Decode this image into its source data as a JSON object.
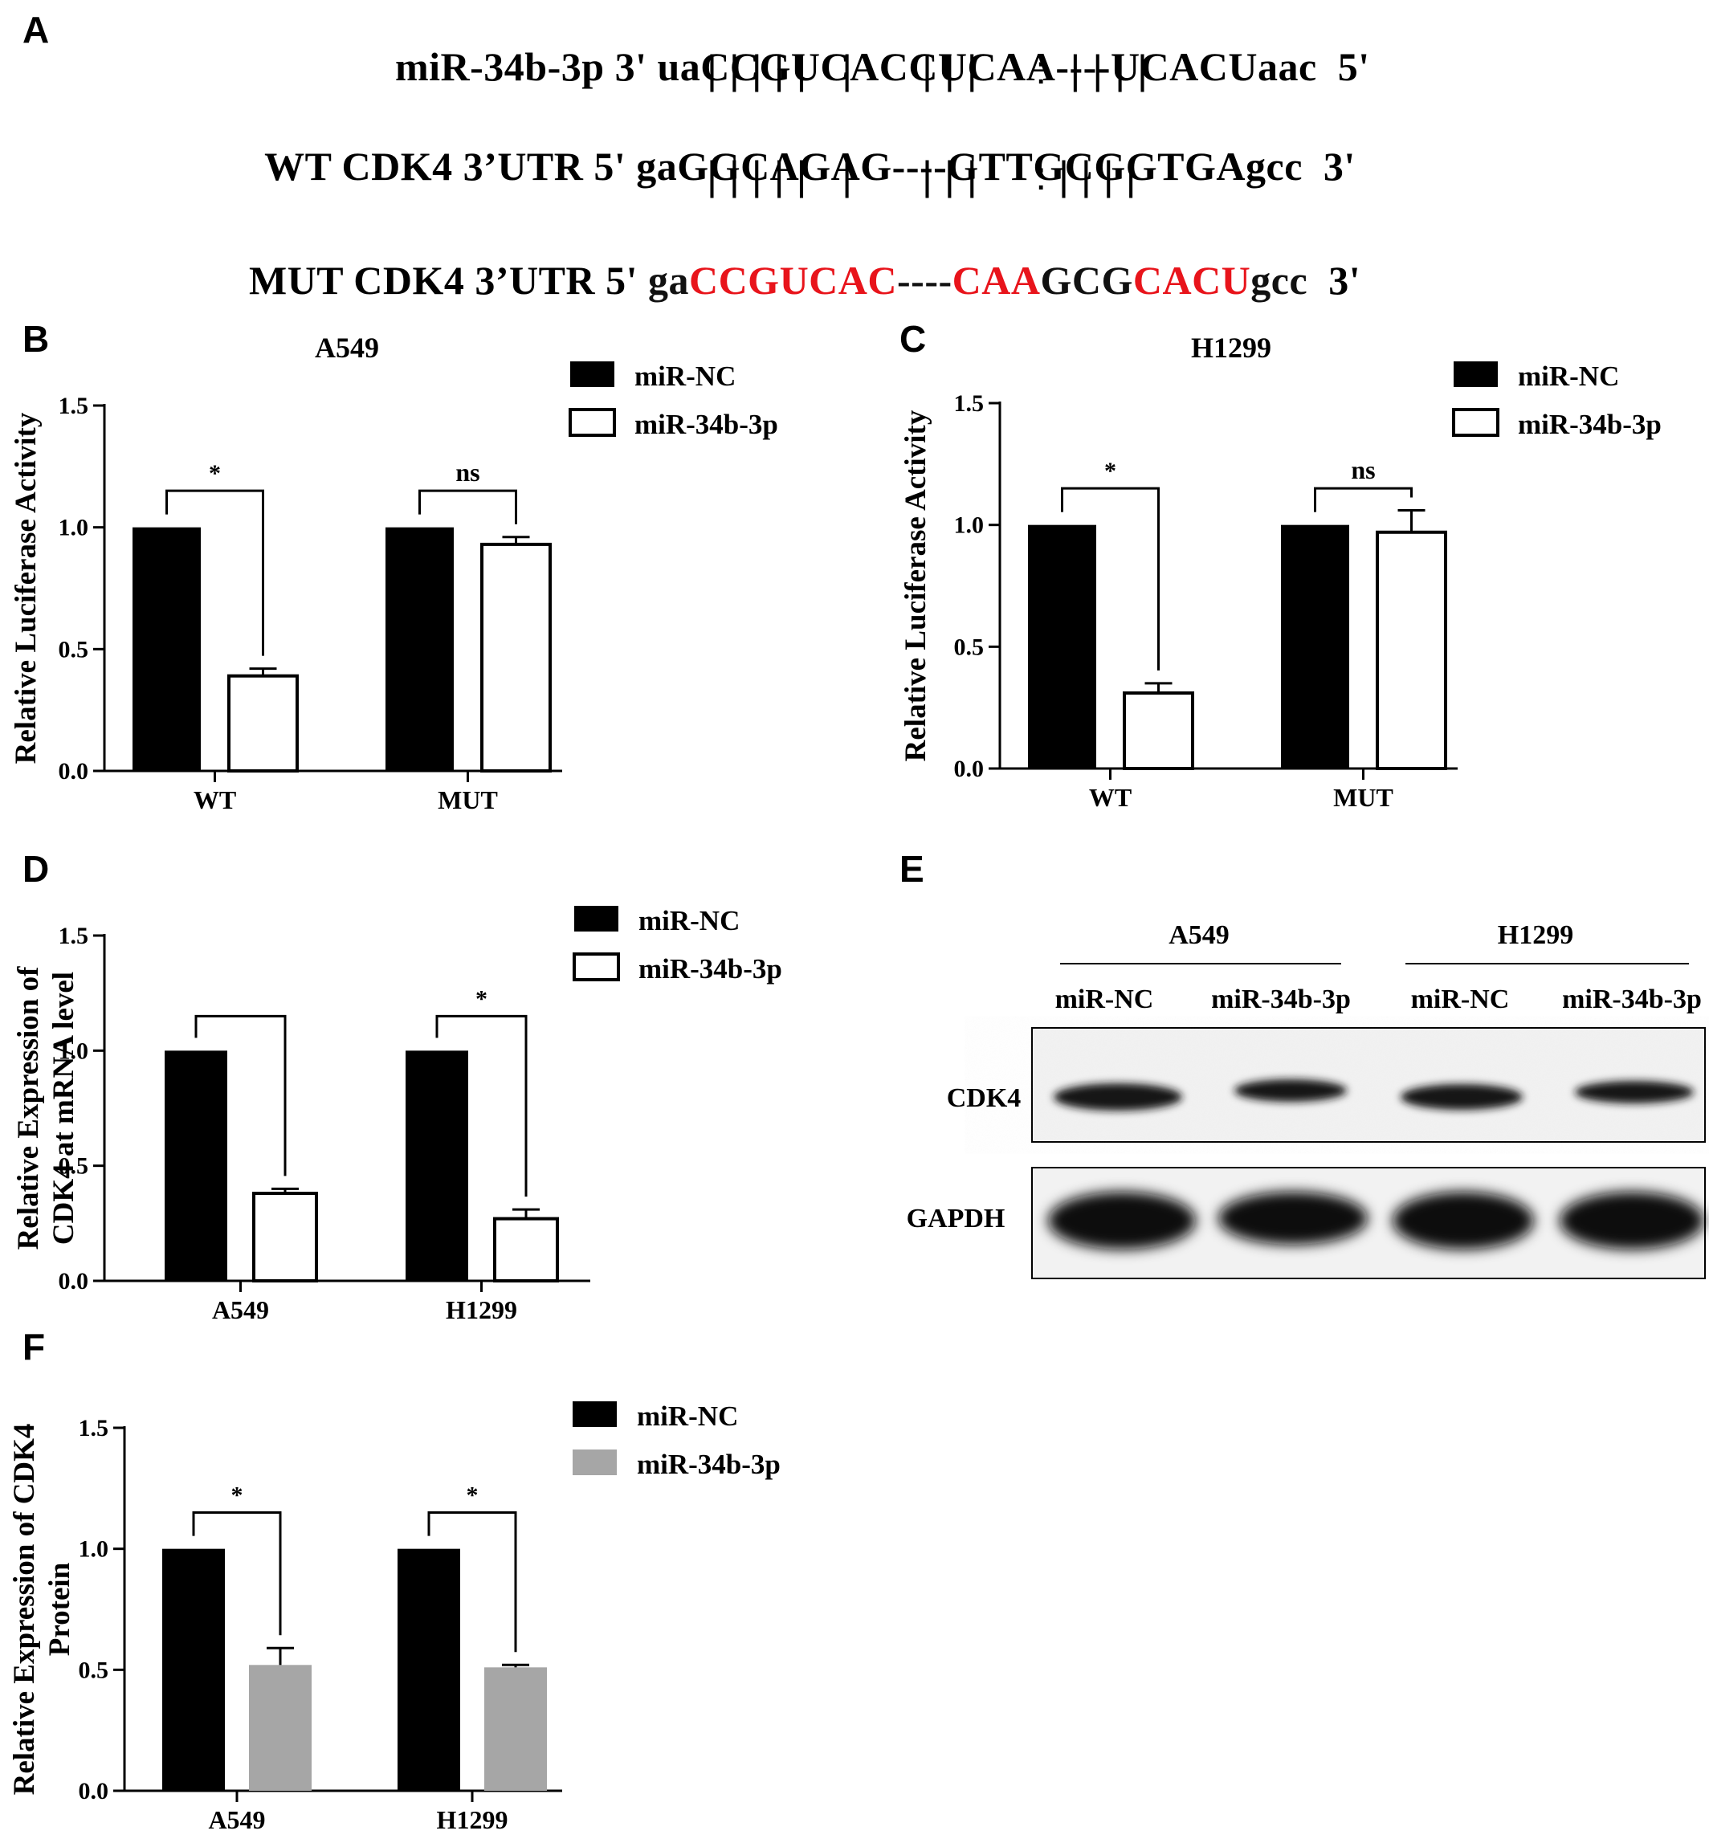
{
  "panel_labels": {
    "a": "A",
    "b": "B",
    "c": "C",
    "d": "D",
    "e": "E",
    "f": "F"
  },
  "panel_a": {
    "row1_prefix": "miR-34b-3p 3'",
    "row1_seq": "uaCCGUCACCUCAA----UCACUaac",
    "row1_suffix": "5'",
    "pair1": "| | | | |   |      | | |     :  | | | |",
    "row2_prefix": "WT CDK4 3’UTR 5'",
    "row2_seq": "gaGGCAGAG----GTTGCGGTGAgcc",
    "row2_suffix": "3'",
    "pair2": "| | | | |   |      | | |     : | | | |",
    "row3_prefix": "MUT CDK4 3’UTR 5'",
    "row3_seq_parts": [
      {
        "text": "ga",
        "color": "black"
      },
      {
        "text": "CCGUCAC",
        "color": "red"
      },
      {
        "text": "----",
        "color": "black"
      },
      {
        "text": "CAA",
        "color": "red"
      },
      {
        "text": "GCG",
        "color": "black"
      },
      {
        "text": "CACU",
        "color": "red"
      },
      {
        "text": "gcc",
        "color": "black"
      }
    ],
    "row3_suffix": "3'"
  },
  "colors": {
    "nc": "#000000",
    "mir_open": "#ffffff",
    "mir_grey": "#a6a6a6",
    "red": "#e8141b"
  },
  "chart_data": [
    {
      "id": "B",
      "type": "bar",
      "title": "A549",
      "ylabel": "Relative Luciferase Activity",
      "categories": [
        "WT",
        "MUT"
      ],
      "series": [
        {
          "name": "miR-NC",
          "values": [
            1.0,
            1.0
          ],
          "errors": [
            0,
            0
          ]
        },
        {
          "name": "miR-34b-3p",
          "values": [
            0.39,
            0.93
          ],
          "errors": [
            0.03,
            0.03
          ]
        }
      ],
      "ylim": [
        0,
        1.5
      ],
      "yticks": [
        "0.0",
        "0.5",
        "1.0",
        "1.5"
      ],
      "significance": [
        "*",
        "ns"
      ],
      "legend": "top-right"
    },
    {
      "id": "C",
      "type": "bar",
      "title": "H1299",
      "ylabel": "Relative Luciferase Activity",
      "categories": [
        "WT",
        "MUT"
      ],
      "series": [
        {
          "name": "miR-NC",
          "values": [
            1.0,
            1.0
          ],
          "errors": [
            0,
            0
          ]
        },
        {
          "name": "miR-34b-3p",
          "values": [
            0.31,
            0.97
          ],
          "errors": [
            0.04,
            0.09
          ]
        }
      ],
      "ylim": [
        0,
        1.5
      ],
      "yticks": [
        "0.0",
        "0.5",
        "1.0",
        "1.5"
      ],
      "significance": [
        "*",
        "ns"
      ],
      "legend": "top-right"
    },
    {
      "id": "D",
      "type": "bar",
      "title": "",
      "ylabel_lines": [
        "Relative Expression of",
        "CDK4 at mRNA level"
      ],
      "categories": [
        "A549",
        "H1299"
      ],
      "series": [
        {
          "name": "miR-NC",
          "values": [
            1.0,
            1.0
          ],
          "errors": [
            0,
            0
          ]
        },
        {
          "name": "miR-34b-3p",
          "values": [
            0.38,
            0.27
          ],
          "errors": [
            0.02,
            0.04
          ]
        }
      ],
      "ylim": [
        0,
        1.5
      ],
      "yticks": [
        "0.0",
        "0.5",
        "1.0",
        "1.5"
      ],
      "significance": [
        "",
        "*"
      ],
      "legend": "top-right"
    },
    {
      "id": "F",
      "type": "bar",
      "title": "",
      "ylabel_lines": [
        "Relative Expression of CDK4",
        "Protein"
      ],
      "categories": [
        "A549",
        "H1299"
      ],
      "series": [
        {
          "name": "miR-NC",
          "values": [
            1.0,
            1.0
          ],
          "errors": [
            0,
            0
          ]
        },
        {
          "name": "miR-34b-3p",
          "values": [
            0.52,
            0.51
          ],
          "errors": [
            0.07,
            0.01
          ]
        }
      ],
      "ylim": [
        0,
        1.5
      ],
      "yticks": [
        "0.0",
        "0.5",
        "1.0",
        "1.5"
      ],
      "significance": [
        "*",
        "*"
      ],
      "legend": "top-right"
    }
  ],
  "blot": {
    "groups": [
      "A549",
      "H1299"
    ],
    "lanes": [
      "miR-NC",
      "miR-34b-3p",
      "miR-NC",
      "miR-34b-3p"
    ],
    "rows": [
      "CDK4",
      "GAPDH"
    ]
  }
}
